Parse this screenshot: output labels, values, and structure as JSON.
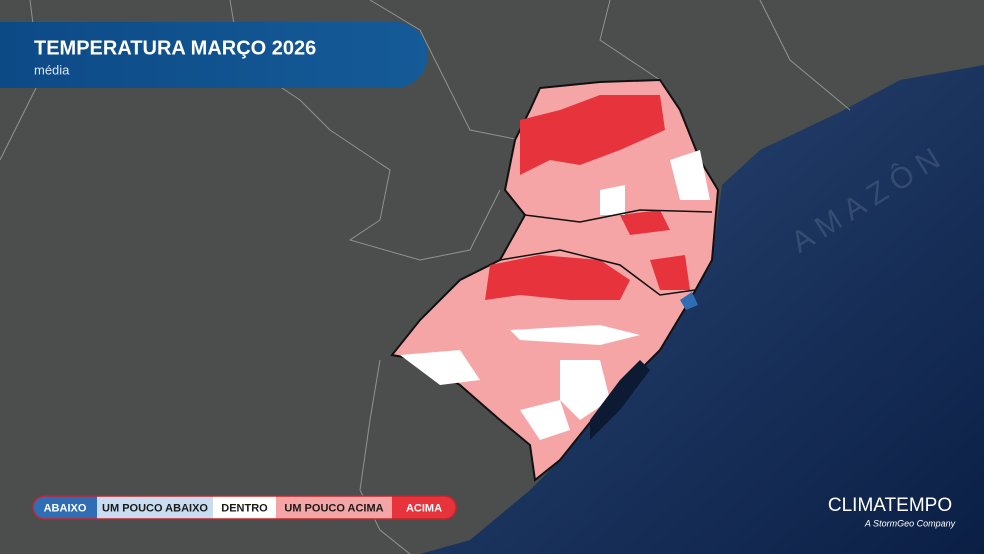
{
  "header": {
    "title": "TEMPERATURA MARÇO 2026",
    "subtitle": "média"
  },
  "legend": {
    "items": [
      {
        "label": "ABAIXO",
        "color": "#2f6db5"
      },
      {
        "label": "UM POUCO ABAIXO",
        "color": "#c9dcf0"
      },
      {
        "label": "DENTRO",
        "color": "#ffffff"
      },
      {
        "label": "UM POUCO ACIMA",
        "color": "#f5a5a6"
      },
      {
        "label": "ACIMA",
        "color": "#e7343c"
      }
    ]
  },
  "logo": {
    "name": "CLIMATEMPO",
    "tagline": "A StormGeo Company"
  },
  "watermark": "AMAZÔN"
}
